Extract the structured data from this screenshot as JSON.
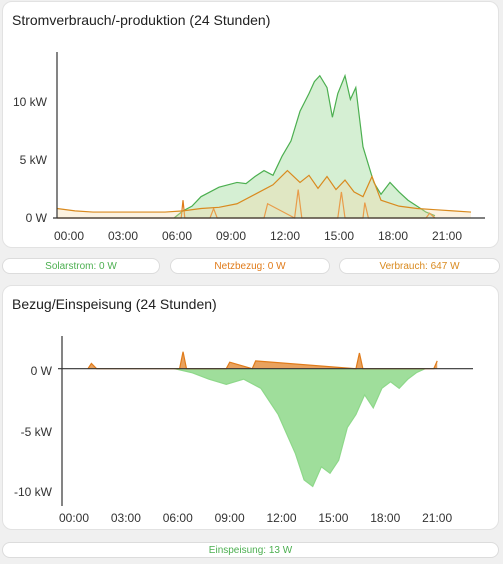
{
  "colors": {
    "solar": "#4caf50",
    "solar_fill": "#c8e6c9",
    "grid": "#e07b1a",
    "consumption": "#d98a1f",
    "return": "#8ed88a"
  },
  "cards": {
    "power": {
      "title": "Stromverbrauch/-produktion (24 Stunden)",
      "chart_data": {
        "type": "area",
        "title": "Stromverbrauch/-produktion (24 Stunden)",
        "x_ticks": [
          "00:00",
          "03:00",
          "06:00",
          "09:00",
          "12:00",
          "15:00",
          "18:00",
          "21:00"
        ],
        "y_ticks": [
          "0 W",
          "5 kW",
          "10 kW"
        ],
        "ylim": [
          0,
          14
        ],
        "x_unit": "hours",
        "series": [
          {
            "name": "Solarstrom",
            "color": "#4caf50",
            "x": [
              6.5,
              7.0,
              7.5,
              8.0,
              8.5,
              9.0,
              9.5,
              10.0,
              10.5,
              11.0,
              11.5,
              12.0,
              12.5,
              13.0,
              13.5,
              14.0,
              14.3,
              14.6,
              15.0,
              15.3,
              15.6,
              16.0,
              16.3,
              16.6,
              17.0,
              17.3,
              17.6,
              18.0,
              18.5,
              19.0,
              19.5,
              20.0,
              20.5,
              21.0
            ],
            "y": [
              0,
              0.6,
              1.0,
              1.8,
              2.2,
              2.6,
              2.8,
              3.0,
              2.9,
              3.5,
              4.0,
              3.6,
              5.2,
              6.5,
              9.0,
              10.5,
              11.5,
              12.0,
              11.0,
              8.5,
              10.5,
              12.0,
              10.0,
              11.0,
              6.0,
              4.5,
              3.0,
              2.0,
              3.0,
              2.2,
              1.5,
              1.0,
              0.5,
              0.2
            ]
          },
          {
            "name": "Netzbezug",
            "color": "#e07b1a",
            "x": [
              0,
              6.9,
              7.0,
              7.1,
              8.5,
              8.7,
              8.9,
              11.5,
              11.7,
              13.2,
              13.4,
              13.6,
              15.6,
              15.8,
              16.0,
              17.0,
              17.1,
              17.3,
              20.5,
              20.7,
              21.0
            ],
            "y": [
              0,
              0,
              1.5,
              0,
              0,
              0.8,
              0,
              0,
              1.2,
              0,
              2.4,
              0,
              0,
              2.2,
              0,
              0,
              1.3,
              0,
              0,
              0.4,
              0
            ]
          },
          {
            "name": "Verbrauch",
            "color": "#d98a1f",
            "x": [
              0,
              1.0,
              2.0,
              3.0,
              4.0,
              5.0,
              6.0,
              7.0,
              8.0,
              9.0,
              10.0,
              11.0,
              12.0,
              12.8,
              13.5,
              14.0,
              14.5,
              15.0,
              15.5,
              16.0,
              16.5,
              17.0,
              17.5,
              18.0,
              19.0,
              20.0,
              21.0,
              22.0,
              23.0
            ],
            "y": [
              0.8,
              0.6,
              0.5,
              0.5,
              0.5,
              0.5,
              0.5,
              0.6,
              0.8,
              0.9,
              1.2,
              2.0,
              2.8,
              4.0,
              3.0,
              3.6,
              2.5,
              3.5,
              2.4,
              3.2,
              2.2,
              1.8,
              3.5,
              1.5,
              1.0,
              0.8,
              0.7,
              0.6,
              0.5
            ]
          }
        ]
      },
      "chips": [
        {
          "label": "Solarstrom: 0 W",
          "color": "#4caf50"
        },
        {
          "label": "Netzbezug: 0 W",
          "color": "#e07b1a"
        },
        {
          "label": "Verbrauch: 647 W",
          "color": "#d98a1f"
        }
      ]
    },
    "grid": {
      "title": "Bezug/Einspeisung (24 Stunden)",
      "chart_data": {
        "type": "area",
        "title": "Bezug/Einspeisung (24 Stunden)",
        "x_ticks": [
          "00:00",
          "03:00",
          "06:00",
          "09:00",
          "12:00",
          "15:00",
          "18:00",
          "21:00"
        ],
        "y_ticks": [
          "0 W",
          "-5 kW",
          "-10 kW"
        ],
        "ylim": [
          -10.5,
          2.5
        ],
        "x_unit": "hours",
        "series": [
          {
            "name": "Einspeisung",
            "color": "#8ed88a",
            "x": [
              6.5,
              7.5,
              8.5,
              9.5,
              10.5,
              11.5,
              12.0,
              12.5,
              13.0,
              13.5,
              14.0,
              14.5,
              15.0,
              15.5,
              16.0,
              16.5,
              17.0,
              17.5,
              18.0,
              18.5,
              19.0,
              19.5,
              20.0,
              20.5,
              21.0
            ],
            "y": [
              0,
              -0.3,
              -0.8,
              -1.2,
              -0.8,
              -1.5,
              -2.5,
              -3.5,
              -5.0,
              -6.5,
              -8.5,
              -9.0,
              -7.5,
              -8.0,
              -7.0,
              -4.5,
              -3.5,
              -2.0,
              -3.0,
              -1.5,
              -1.0,
              -1.5,
              -0.8,
              -0.3,
              0
            ]
          },
          {
            "name": "Bezug",
            "color": "#e07b1a",
            "x": [
              1.5,
              1.7,
              2.0,
              6.8,
              7.0,
              7.2,
              9.5,
              9.7,
              11.0,
              11.2,
              17.0,
              17.2,
              17.4,
              21.5,
              21.7
            ],
            "y": [
              0,
              0.4,
              0,
              0,
              1.3,
              0,
              0,
              0.5,
              0,
              0.6,
              0,
              1.2,
              0,
              0,
              0.6
            ]
          }
        ]
      },
      "chips": [
        {
          "label": "Einspeisung: 13 W",
          "color": "#4caf50"
        }
      ]
    }
  }
}
